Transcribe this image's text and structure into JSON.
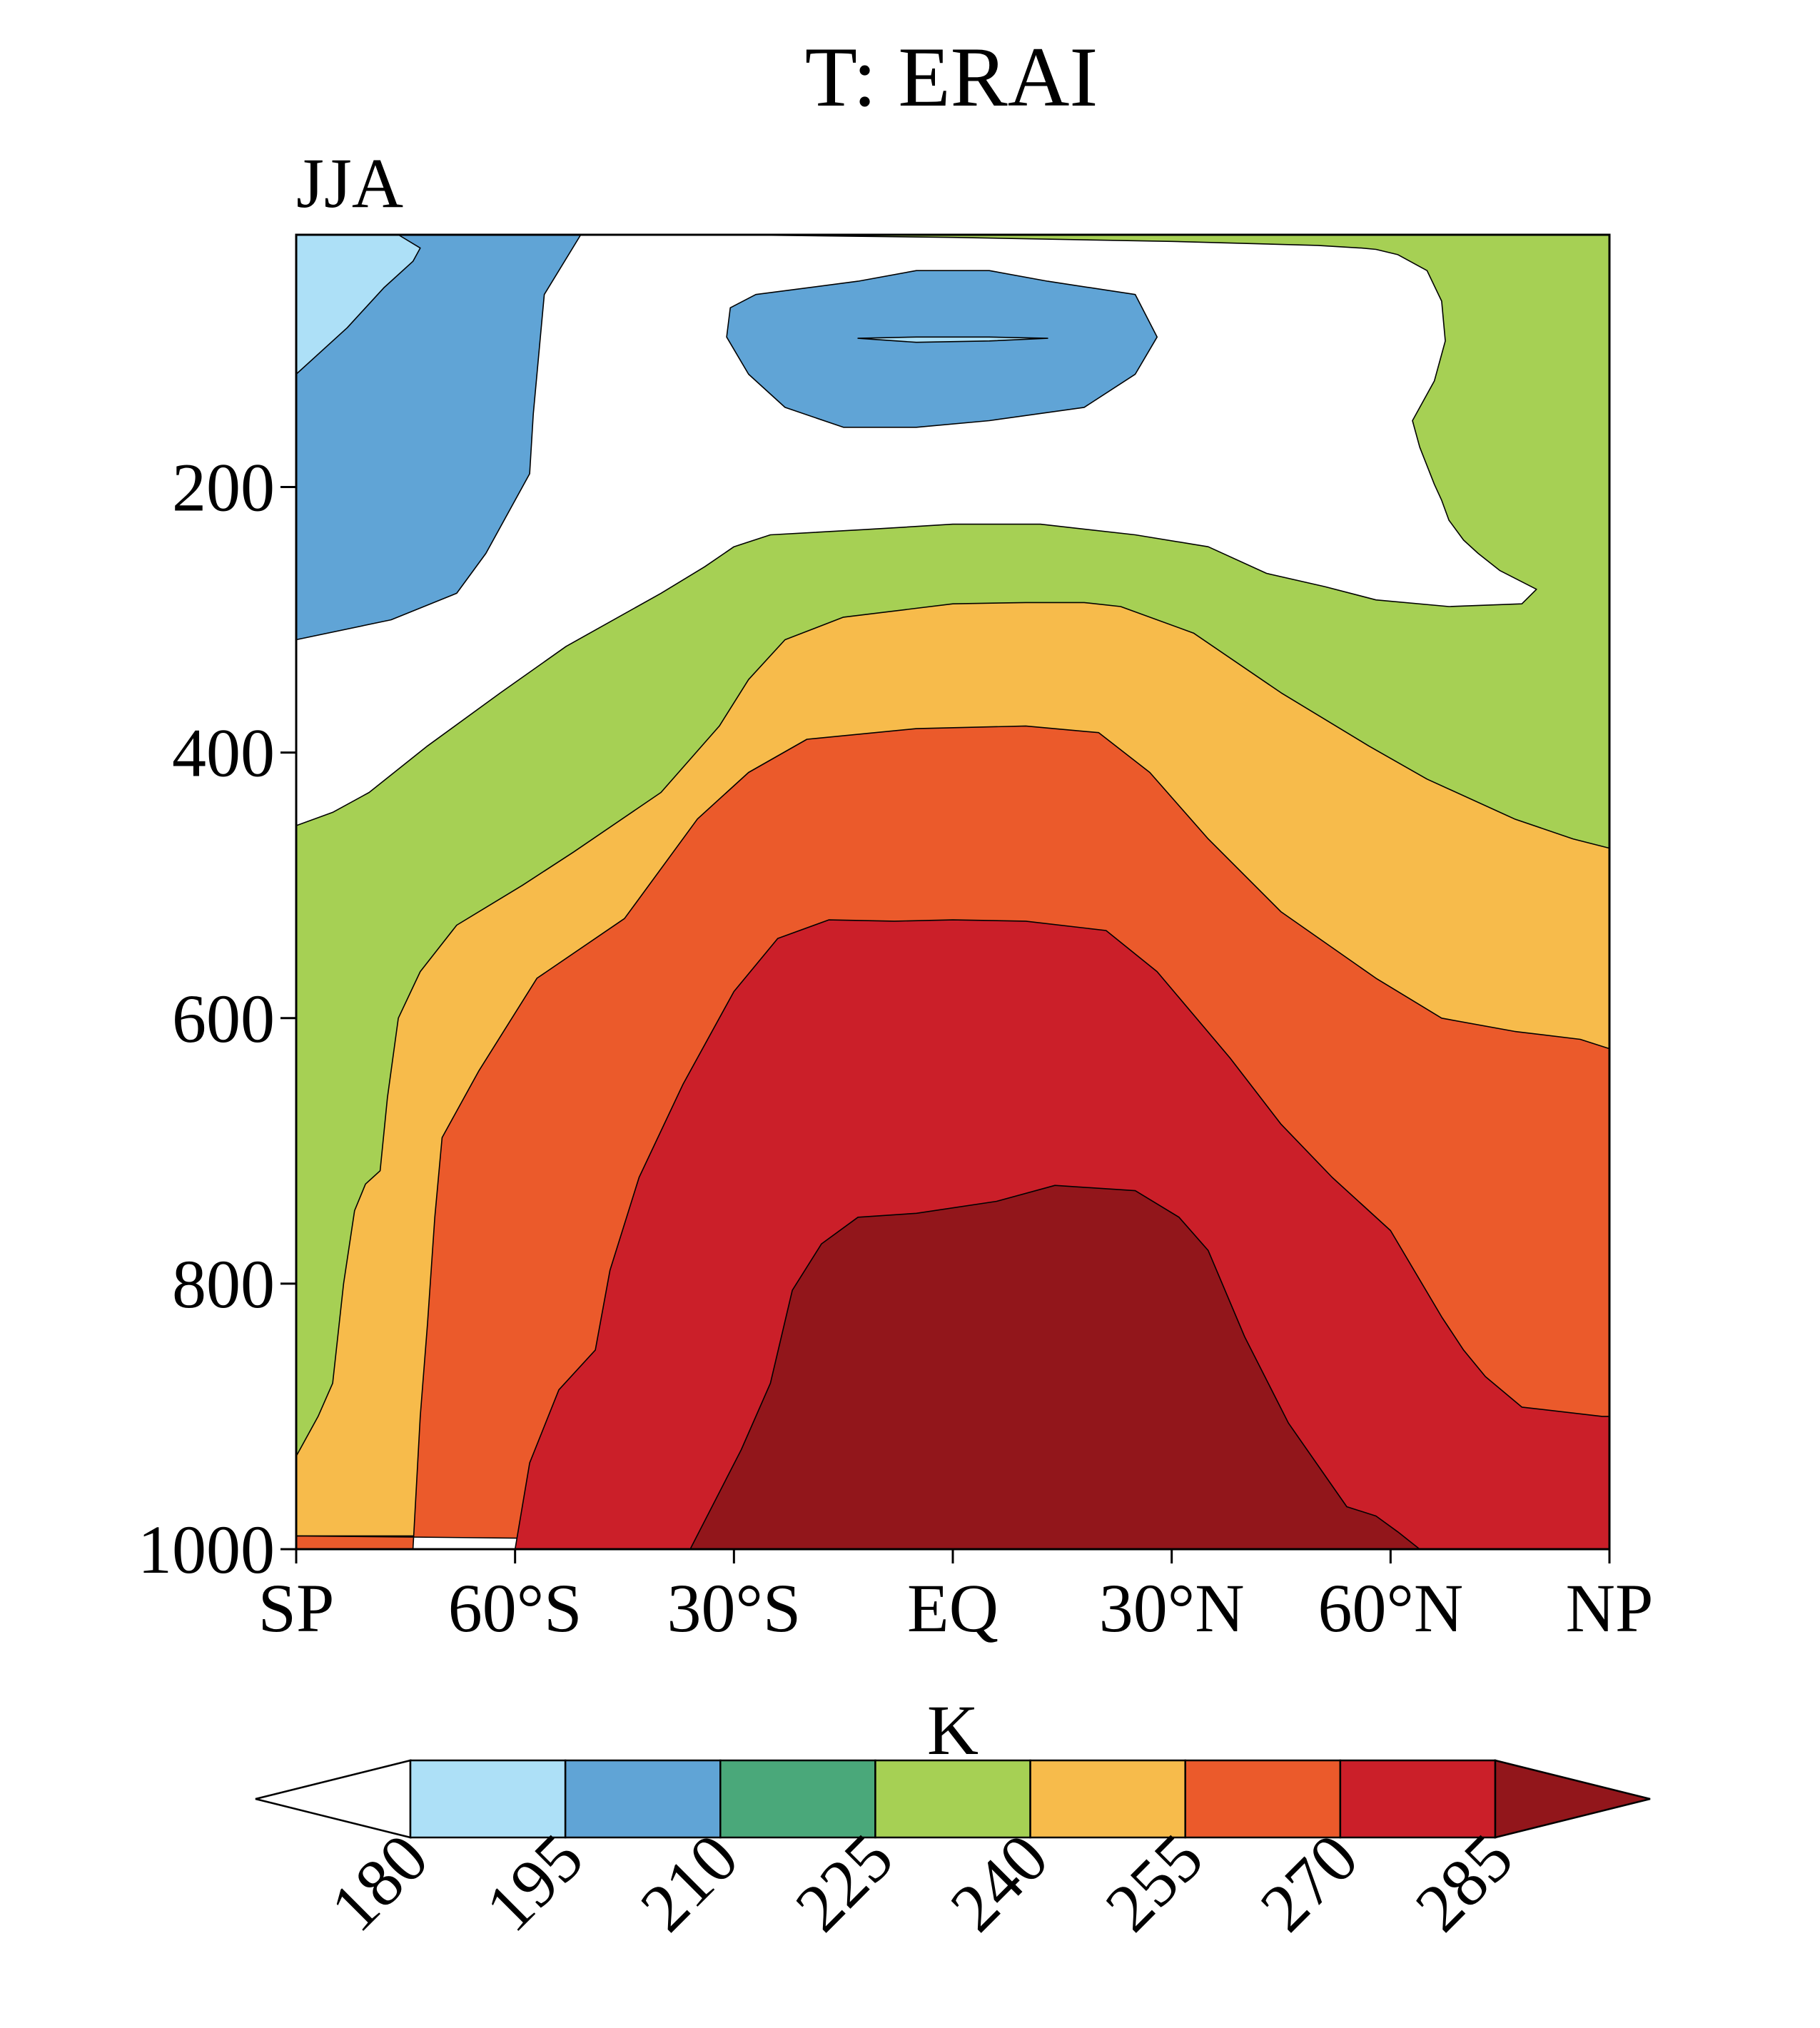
{
  "chart_data": {
    "type": "contour",
    "title": "T: ERAI",
    "panel_label": "JJA",
    "units": "K",
    "x_ticks": [
      "SP",
      "60°S",
      "30°S",
      "EQ",
      "30°N",
      "60°N",
      "NP"
    ],
    "x_values": [
      -90,
      -60,
      -30,
      0,
      30,
      60,
      90
    ],
    "y_ticks": [
      "200",
      "400",
      "600",
      "800",
      "1000"
    ],
    "y_values": [
      200,
      400,
      600,
      800,
      1000
    ],
    "xlim": [
      -90,
      90
    ],
    "ylim": [
      10,
      1000
    ],
    "y_reversed": true,
    "contour_levels": [
      180,
      195,
      210,
      225,
      240,
      255,
      270,
      285
    ],
    "level_labels": [
      "180",
      "195",
      "210",
      "225",
      "240",
      "255",
      "270",
      "285"
    ],
    "colorbar_colors": [
      "#ffffff",
      "#ade0f7",
      "#60a4d6",
      "#4aa87a",
      "#a6d054",
      "#f7bb4b",
      "#eb5a2b",
      "#cb1f29",
      "#92161b"
    ],
    "colorbar": {
      "orientation": "horizontal",
      "extend": "both",
      "placement": "bottom"
    },
    "bands": [
      {
        "range": "<210",
        "color": "#60a4d6",
        "points": [
          [
            -90,
            10
          ],
          [
            -51,
            10
          ],
          [
            -56,
            55
          ],
          [
            -57.5,
            145
          ],
          [
            -58,
            190
          ],
          [
            -64,
            250
          ],
          [
            -68,
            280
          ],
          [
            -77,
            300
          ],
          [
            -90,
            315
          ]
        ]
      },
      {
        "range": "180-195",
        "color": "#ade0f7",
        "points": [
          [
            -90,
            10
          ],
          [
            -76,
            10
          ],
          [
            -73,
            20
          ],
          [
            -74,
            30
          ],
          [
            -78,
            50
          ],
          [
            -83,
            80
          ],
          [
            -90,
            115
          ]
        ]
      },
      {
        "range": "195-210",
        "color": "#60a4d6",
        "points": [
          [
            -31,
            87
          ],
          [
            -30.5,
            65
          ],
          [
            -27,
            55
          ],
          [
            -13,
            45
          ],
          [
            -5,
            37
          ],
          [
            5,
            37
          ],
          [
            13,
            45
          ],
          [
            25,
            55
          ],
          [
            28,
            87
          ],
          [
            25,
            115
          ],
          [
            18,
            140
          ],
          [
            5,
            150
          ],
          [
            -5,
            155
          ],
          [
            -15,
            155
          ],
          [
            -23,
            140
          ],
          [
            -28,
            115
          ]
        ]
      },
      {
        "range": "180-195",
        "color": "#ade0f7",
        "points": [
          [
            -13,
            88
          ],
          [
            -5,
            87
          ],
          [
            5,
            87
          ],
          [
            13,
            88
          ],
          [
            5,
            90
          ],
          [
            -5,
            91
          ]
        ]
      },
      {
        "range": "225-240",
        "color": "#a6d054",
        "points": [
          [
            -90,
            455
          ],
          [
            -85,
            445
          ],
          [
            -80,
            430
          ],
          [
            -72,
            395
          ],
          [
            -62,
            355
          ],
          [
            -53,
            320
          ],
          [
            -40,
            280
          ],
          [
            -34,
            260
          ],
          [
            -30,
            245
          ],
          [
            -25,
            236
          ],
          [
            -12,
            232
          ],
          [
            0,
            228
          ],
          [
            12,
            228
          ],
          [
            25,
            236
          ],
          [
            35,
            245
          ],
          [
            43,
            265
          ],
          [
            51,
            275
          ],
          [
            58,
            285
          ],
          [
            68,
            290
          ],
          [
            78,
            288
          ],
          [
            80,
            277
          ],
          [
            75,
            263
          ],
          [
            72,
            250
          ],
          [
            70,
            240
          ],
          [
            68,
            225
          ],
          [
            67,
            210
          ],
          [
            66,
            198
          ],
          [
            64,
            170
          ],
          [
            63,
            150
          ],
          [
            66,
            120
          ],
          [
            67.5,
            90
          ],
          [
            67,
            60
          ],
          [
            65,
            37
          ],
          [
            61,
            25
          ],
          [
            58,
            21
          ],
          [
            56,
            20
          ],
          [
            50,
            18
          ],
          [
            30,
            15
          ],
          [
            0,
            12
          ],
          [
            -31,
            10
          ],
          [
            90,
            10
          ],
          [
            90,
            990
          ],
          [
            -90,
            990
          ]
        ]
      },
      {
        "range": "240-255",
        "color": "#f7bb4b",
        "points": [
          [
            -90,
            930
          ],
          [
            -87,
            900
          ],
          [
            -85,
            875
          ],
          [
            -83.5,
            800
          ],
          [
            -82,
            745
          ],
          [
            -80.5,
            725
          ],
          [
            -78.5,
            715
          ],
          [
            -77.5,
            660
          ],
          [
            -76,
            600
          ],
          [
            -73,
            565
          ],
          [
            -68,
            530
          ],
          [
            -59,
            500
          ],
          [
            -52,
            475
          ],
          [
            -40,
            430
          ],
          [
            -32,
            380
          ],
          [
            -28,
            345
          ],
          [
            -23,
            315
          ],
          [
            -15,
            298
          ],
          [
            0,
            288
          ],
          [
            10,
            287
          ],
          [
            18,
            287
          ],
          [
            23,
            290
          ],
          [
            33,
            310
          ],
          [
            45,
            355
          ],
          [
            57,
            395
          ],
          [
            65,
            420
          ],
          [
            77,
            450
          ],
          [
            85,
            465
          ],
          [
            90,
            472
          ],
          [
            90,
            990
          ],
          [
            -90,
            990
          ]
        ]
      },
      {
        "range": "255-270",
        "color": "#eb5a2b",
        "points": [
          [
            -90,
            990
          ],
          [
            -90,
            1000
          ],
          [
            -74,
            1000
          ],
          [
            -73,
            900
          ],
          [
            -72,
            830
          ],
          [
            -71,
            750
          ],
          [
            -70,
            690
          ],
          [
            -65,
            640
          ],
          [
            -57,
            570
          ],
          [
            -45,
            525
          ],
          [
            -35,
            450
          ],
          [
            -28,
            415
          ],
          [
            -20,
            390
          ],
          [
            -5,
            382
          ],
          [
            10,
            380
          ],
          [
            20,
            385
          ],
          [
            27,
            415
          ],
          [
            35,
            465
          ],
          [
            45,
            520
          ],
          [
            58,
            570
          ],
          [
            67,
            600
          ],
          [
            77,
            610
          ],
          [
            86,
            616
          ],
          [
            90,
            623
          ],
          [
            90,
            1000
          ]
        ]
      },
      {
        "range": "270-285",
        "color": "#cb1f29",
        "points": [
          [
            -60,
            1000
          ],
          [
            -58,
            935
          ],
          [
            -54,
            880
          ],
          [
            -49,
            850
          ],
          [
            -47,
            790
          ],
          [
            -43,
            720
          ],
          [
            -37,
            650
          ],
          [
            -30,
            580
          ],
          [
            -24,
            540
          ],
          [
            -17,
            526
          ],
          [
            -8,
            527
          ],
          [
            0,
            526
          ],
          [
            10,
            527
          ],
          [
            21,
            534
          ],
          [
            28,
            565
          ],
          [
            38,
            630
          ],
          [
            45,
            680
          ],
          [
            52,
            720
          ],
          [
            60,
            760
          ],
          [
            67,
            825
          ],
          [
            70,
            850
          ],
          [
            73,
            870
          ],
          [
            78,
            893
          ],
          [
            89,
            900
          ],
          [
            90,
            900
          ],
          [
            90,
            1000
          ]
        ]
      },
      {
        "range": ">285",
        "color": "#92161b",
        "points": [
          [
            -36,
            1000
          ],
          [
            -29,
            925
          ],
          [
            -25,
            875
          ],
          [
            -22,
            805
          ],
          [
            -18,
            770
          ],
          [
            -13,
            750
          ],
          [
            -5,
            747
          ],
          [
            6,
            738
          ],
          [
            14,
            726
          ],
          [
            25,
            730
          ],
          [
            31,
            750
          ],
          [
            35,
            775
          ],
          [
            40,
            840
          ],
          [
            46,
            905
          ],
          [
            54,
            968
          ],
          [
            58,
            975
          ],
          [
            61,
            987
          ],
          [
            64,
            1000
          ]
        ]
      }
    ]
  }
}
